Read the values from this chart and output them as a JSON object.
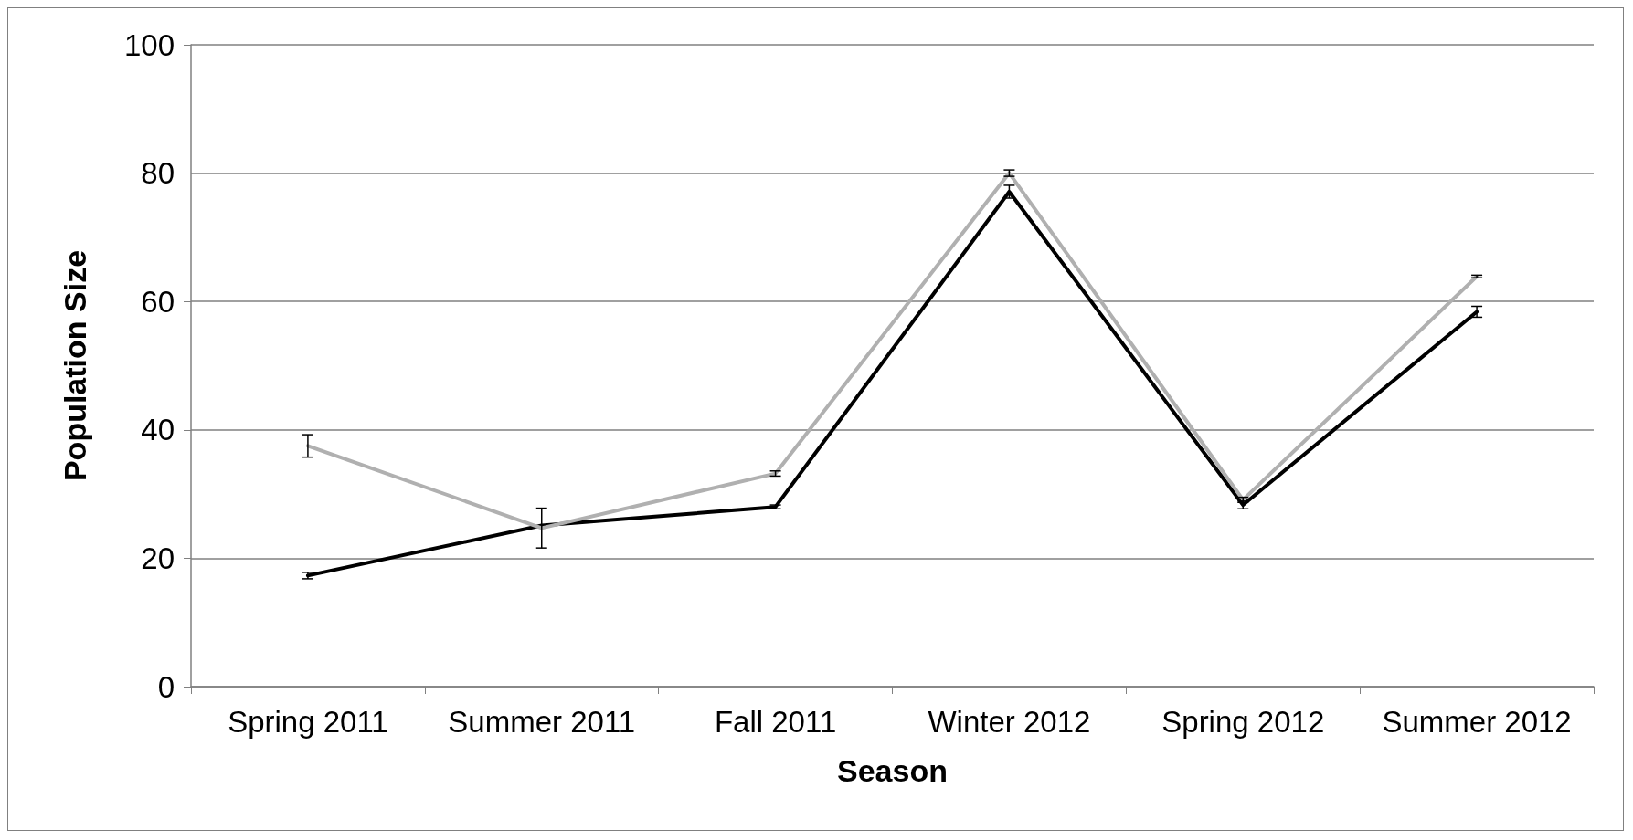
{
  "chart_data": {
    "type": "line",
    "xlabel": "Season",
    "ylabel": "Population Size",
    "categories": [
      "Spring 2011",
      "Summer 2011",
      "Fall 2011",
      "Winter 2012",
      "Spring 2012",
      "Summer 2012"
    ],
    "series": [
      {
        "color": "#000000",
        "values": [
          17.3,
          25.1,
          28.0,
          77.1,
          28.3,
          58.4
        ],
        "errors": [
          0.5,
          null,
          0.3,
          1,
          0.6,
          0.85
        ]
      },
      {
        "color": "#b0b0b0",
        "values": [
          37.5,
          24.7,
          33.2,
          80,
          29.1,
          63.9
        ],
        "errors": [
          1.75,
          3.1,
          0.4,
          0.5,
          0.4,
          0.2
        ]
      }
    ],
    "ylim": [
      0,
      100
    ],
    "yticks": [
      0,
      20,
      40,
      60,
      80,
      100
    ],
    "grid": "y",
    "marker": "none",
    "line_style": "solid"
  }
}
